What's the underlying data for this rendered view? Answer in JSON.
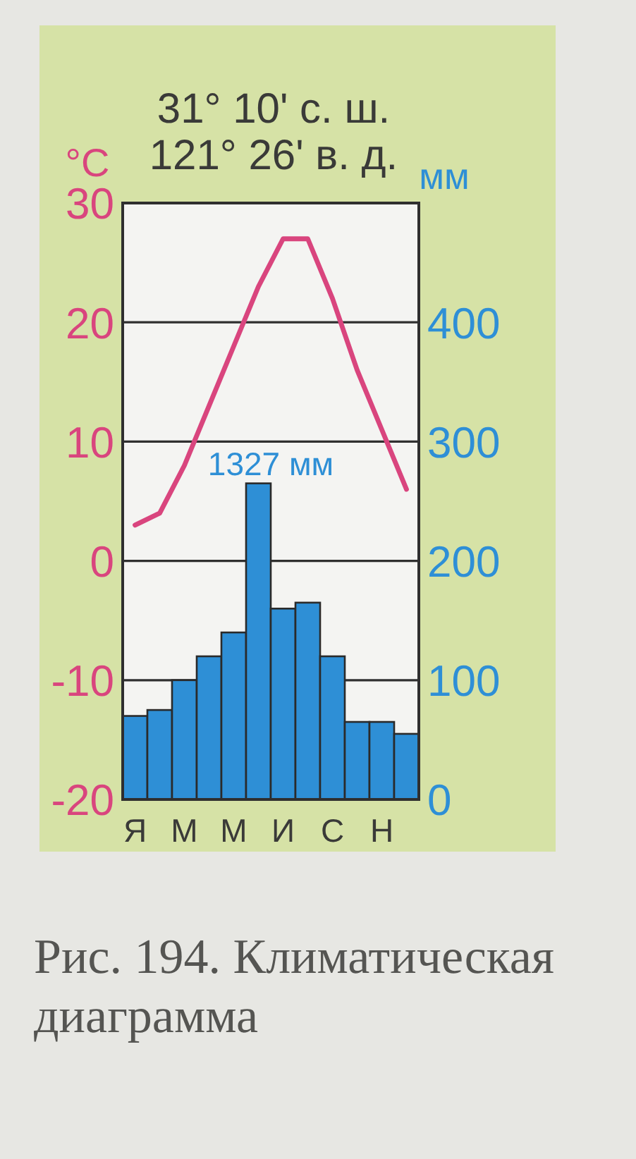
{
  "chart_data": {
    "type": "bar",
    "title": "31° 10' с. ш.",
    "subtitle": "121° 26' в. д.",
    "ylabel": "°C",
    "y2label": "мм",
    "categories": [
      "Я",
      null,
      "М",
      null,
      "М",
      null,
      "И",
      null,
      "С",
      null,
      "Н",
      null
    ],
    "series": [
      {
        "axis": "y2",
        "color": "#2e8fd6",
        "values": [
          70,
          75,
          100,
          120,
          140,
          265,
          160,
          165,
          120,
          65,
          65,
          55
        ]
      },
      {
        "type": "line",
        "color": "#d9457e",
        "values": [
          3,
          4,
          8,
          13,
          18,
          23,
          27,
          27,
          22,
          16,
          11,
          6
        ]
      }
    ],
    "ylim": [
      -20,
      30
    ],
    "yticks": [
      -20,
      -10,
      0,
      10,
      20,
      30
    ],
    "y2lim": [
      0,
      500
    ],
    "y2ticks": [
      0,
      100,
      200,
      300,
      400
    ],
    "grid": "y",
    "line_style": "solid",
    "annotations": [
      "1327 мм",
      "Рис. 194. Климатическая диаграмма"
    ]
  }
}
